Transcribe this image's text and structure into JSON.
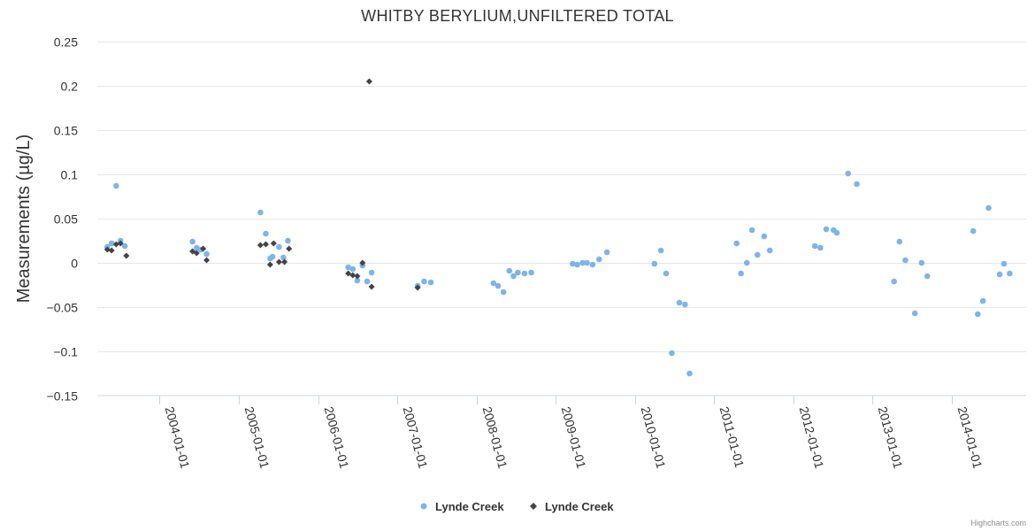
{
  "chart_data": {
    "type": "scatter",
    "title": "WHITBY BERYLIUM,UNFILTERED TOTAL",
    "ylabel": "Measurements (µg/L)",
    "xlabel": "",
    "ylim": [
      -0.15,
      0.25
    ],
    "yticks": [
      0.25,
      0.2,
      0.15,
      0.1,
      0.05,
      0,
      -0.05,
      -0.1,
      -0.15
    ],
    "ytick_labels": [
      "0.25",
      "0.2",
      "0.15",
      "0.1",
      "0.05",
      "0",
      "−0.05",
      "−0.1",
      "−0.15"
    ],
    "xlim": [
      "2003-03-20",
      "2014-12-10"
    ],
    "xticks": [
      "2004-01-01",
      "2005-01-01",
      "2006-01-01",
      "2007-01-01",
      "2008-01-01",
      "2009-01-01",
      "2010-01-01",
      "2011-01-01",
      "2012-01-01",
      "2013-01-01",
      "2014-01-01"
    ],
    "grid": true,
    "legend_position": "bottom-center",
    "series": [
      {
        "name": "Lynde Creek",
        "marker": "circle",
        "color": "#7cb5ec",
        "points": [
          [
            "2003-05-05",
            0.018
          ],
          [
            "2003-05-25",
            0.022
          ],
          [
            "2003-06-15",
            0.087
          ],
          [
            "2003-07-05",
            0.025
          ],
          [
            "2003-07-25",
            0.019
          ],
          [
            "2004-06-01",
            0.024
          ],
          [
            "2004-06-20",
            0.017
          ],
          [
            "2004-07-10",
            0.015
          ],
          [
            "2004-08-05",
            0.01
          ],
          [
            "2005-04-10",
            0.057
          ],
          [
            "2005-05-05",
            0.033
          ],
          [
            "2005-05-25",
            0.005
          ],
          [
            "2005-06-05",
            0.007
          ],
          [
            "2005-07-05",
            0.018
          ],
          [
            "2005-07-25",
            0.006
          ],
          [
            "2005-08-15",
            0.025
          ],
          [
            "2006-05-20",
            -0.005
          ],
          [
            "2006-06-10",
            -0.007
          ],
          [
            "2006-07-01",
            -0.02
          ],
          [
            "2006-07-25",
            -0.003
          ],
          [
            "2006-08-15",
            -0.021
          ],
          [
            "2006-09-05",
            -0.011
          ],
          [
            "2007-04-05",
            -0.026
          ],
          [
            "2007-05-05",
            -0.021
          ],
          [
            "2007-06-05",
            -0.022
          ],
          [
            "2008-03-20",
            -0.023
          ],
          [
            "2008-04-10",
            -0.026
          ],
          [
            "2008-05-05",
            -0.033
          ],
          [
            "2008-06-01",
            -0.009
          ],
          [
            "2008-06-20",
            -0.015
          ],
          [
            "2008-07-10",
            -0.011
          ],
          [
            "2008-08-10",
            -0.012
          ],
          [
            "2008-09-10",
            -0.011
          ],
          [
            "2009-03-20",
            -0.001
          ],
          [
            "2009-04-10",
            -0.002
          ],
          [
            "2009-05-05",
            0.0
          ],
          [
            "2009-05-25",
            0.0
          ],
          [
            "2009-06-20",
            -0.002
          ],
          [
            "2009-07-20",
            0.004
          ],
          [
            "2009-08-25",
            0.012
          ],
          [
            "2010-04-01",
            -0.001
          ],
          [
            "2010-05-01",
            0.014
          ],
          [
            "2010-05-25",
            -0.012
          ],
          [
            "2010-06-20",
            -0.102
          ],
          [
            "2010-07-25",
            -0.045
          ],
          [
            "2010-08-20",
            -0.047
          ],
          [
            "2010-09-10",
            -0.125
          ],
          [
            "2011-04-15",
            0.022
          ],
          [
            "2011-05-05",
            -0.012
          ],
          [
            "2011-06-01",
            0.0
          ],
          [
            "2011-06-25",
            0.037
          ],
          [
            "2011-07-20",
            0.009
          ],
          [
            "2011-08-20",
            0.03
          ],
          [
            "2011-09-15",
            0.014
          ],
          [
            "2012-04-10",
            0.019
          ],
          [
            "2012-05-05",
            0.017
          ],
          [
            "2012-06-01",
            0.038
          ],
          [
            "2012-07-05",
            0.037
          ],
          [
            "2012-07-20",
            0.034
          ],
          [
            "2012-09-10",
            0.101
          ],
          [
            "2012-10-20",
            0.089
          ],
          [
            "2013-04-10",
            -0.021
          ],
          [
            "2013-05-05",
            0.024
          ],
          [
            "2013-06-01",
            0.003
          ],
          [
            "2013-07-15",
            -0.057
          ],
          [
            "2013-08-15",
            0.0
          ],
          [
            "2013-09-10",
            -0.015
          ],
          [
            "2014-04-10",
            0.036
          ],
          [
            "2014-05-01",
            -0.058
          ],
          [
            "2014-05-25",
            -0.043
          ],
          [
            "2014-06-20",
            0.062
          ],
          [
            "2014-08-10",
            -0.013
          ],
          [
            "2014-08-30",
            -0.001
          ],
          [
            "2014-09-25",
            -0.012
          ]
        ]
      },
      {
        "name": "Lynde Creek",
        "marker": "diamond",
        "color": "#434348",
        "points": [
          [
            "2003-05-05",
            0.015
          ],
          [
            "2003-05-25",
            0.014
          ],
          [
            "2003-06-15",
            0.021
          ],
          [
            "2003-07-05",
            0.022
          ],
          [
            "2003-08-01",
            0.008
          ],
          [
            "2004-06-01",
            0.013
          ],
          [
            "2004-06-20",
            0.011
          ],
          [
            "2004-07-20",
            0.016
          ],
          [
            "2004-08-05",
            0.003
          ],
          [
            "2005-04-10",
            0.02
          ],
          [
            "2005-05-05",
            0.021
          ],
          [
            "2005-05-25",
            -0.002
          ],
          [
            "2005-06-10",
            0.022
          ],
          [
            "2005-07-05",
            0.001
          ],
          [
            "2005-07-30",
            0.001
          ],
          [
            "2005-08-20",
            0.016
          ],
          [
            "2006-05-20",
            -0.012
          ],
          [
            "2006-06-10",
            -0.014
          ],
          [
            "2006-07-01",
            -0.015
          ],
          [
            "2006-07-25",
            0.0
          ],
          [
            "2006-08-25",
            0.205
          ],
          [
            "2006-09-05",
            -0.027
          ],
          [
            "2007-04-05",
            -0.028
          ]
        ]
      }
    ],
    "legend": [
      "Lynde Creek",
      "Lynde Creek"
    ],
    "credit": "Highcharts.com"
  }
}
